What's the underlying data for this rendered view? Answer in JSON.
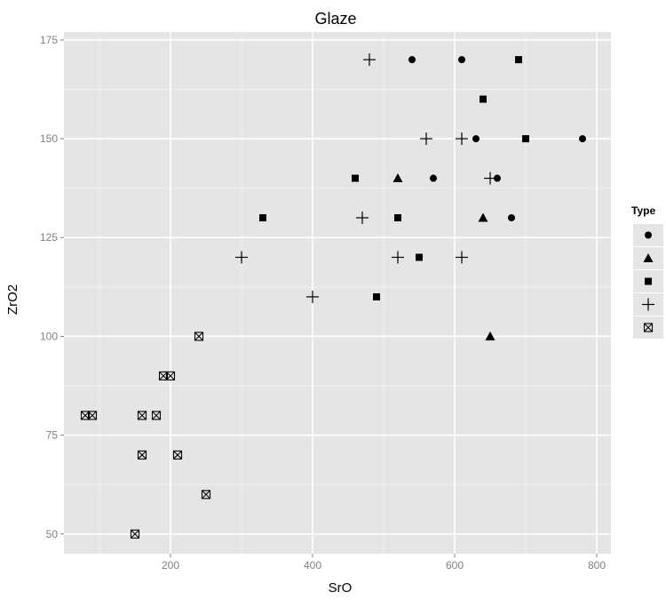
{
  "chart_data": {
    "type": "scatter",
    "title": "Glaze",
    "xlabel": "SrO",
    "ylabel": "ZrO2",
    "xlim": [
      50,
      820
    ],
    "ylim": [
      45,
      177
    ],
    "x_ticks": [
      200,
      400,
      600,
      800
    ],
    "y_ticks": [
      50,
      75,
      100,
      125,
      150,
      175
    ],
    "grid": true,
    "legend": {
      "title": "Type",
      "position": "right"
    },
    "series": [
      {
        "shape": "circle",
        "points": [
          [
            540,
            170
          ],
          [
            610,
            170
          ],
          [
            630,
            150
          ],
          [
            780,
            150
          ],
          [
            570,
            140
          ],
          [
            660,
            140
          ],
          [
            680,
            130
          ]
        ]
      },
      {
        "shape": "triangle",
        "points": [
          [
            520,
            140
          ],
          [
            640,
            130
          ],
          [
            650,
            100
          ]
        ]
      },
      {
        "shape": "square",
        "points": [
          [
            690,
            170
          ],
          [
            640,
            160
          ],
          [
            700,
            150
          ],
          [
            460,
            140
          ],
          [
            330,
            130
          ],
          [
            520,
            130
          ],
          [
            550,
            120
          ],
          [
            490,
            110
          ]
        ]
      },
      {
        "shape": "plus",
        "points": [
          [
            480,
            170
          ],
          [
            560,
            150
          ],
          [
            610,
            150
          ],
          [
            650,
            140
          ],
          [
            470,
            130
          ],
          [
            300,
            120
          ],
          [
            520,
            120
          ],
          [
            610,
            120
          ],
          [
            400,
            110
          ]
        ]
      },
      {
        "shape": "boxed-x",
        "points": [
          [
            240,
            100
          ],
          [
            190,
            90
          ],
          [
            200,
            90
          ],
          [
            80,
            80
          ],
          [
            90,
            80
          ],
          [
            160,
            80
          ],
          [
            180,
            80
          ],
          [
            160,
            70
          ],
          [
            210,
            70
          ],
          [
            250,
            60
          ],
          [
            150,
            50
          ]
        ]
      }
    ]
  },
  "style": {
    "panel_bg": "#e5e5e5",
    "grid_major": "#ffffff",
    "grid_minor": "#f2f2f2",
    "marker_color": "#000000"
  }
}
